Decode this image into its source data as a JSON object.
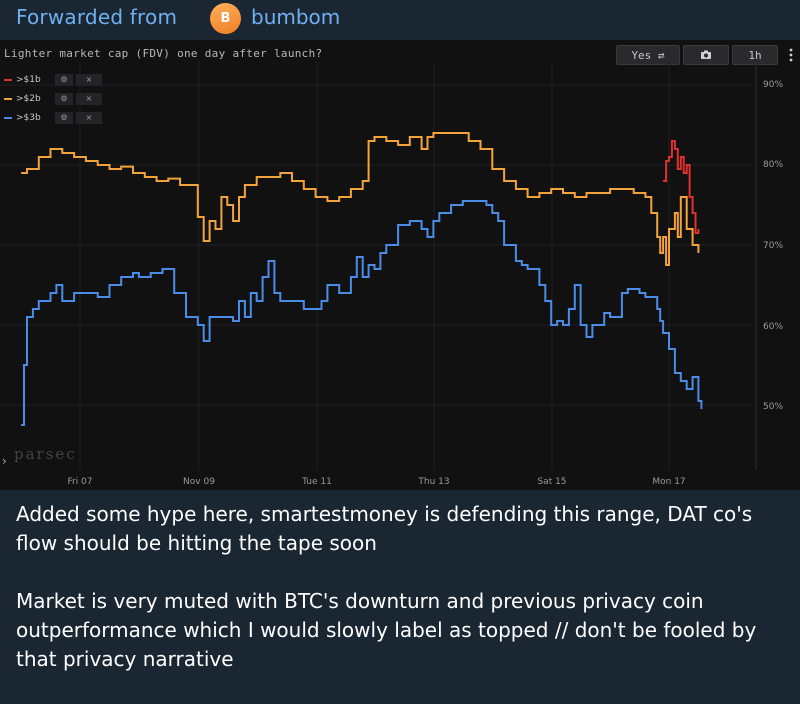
{
  "forward": {
    "label": "Forwarded from",
    "avatar_letter": "B",
    "sender": "bumbom"
  },
  "chart_header": {
    "title": "Lighter market cap (FDV) one day after launch?",
    "toggle_label": "Yes ⇄",
    "camera_icon": "camera-icon",
    "interval_label": "1h",
    "menu_icon": "more-vertical-icon"
  },
  "legend": [
    {
      "label": ">$1b",
      "color": "#e0312f"
    },
    {
      "label": ">$2b",
      "color": "#f2a33a"
    },
    {
      "label": ">$3b",
      "color": "#4a8de8"
    }
  ],
  "watermark": "parsec",
  "chart_data": {
    "type": "line",
    "title": "Lighter market cap (FDV) one day after launch?",
    "x_tick_labels": [
      "Fri 07",
      "Nov 09",
      "Tue 11",
      "Thu 13",
      "Sat 15",
      "Mon 17"
    ],
    "y_tick_labels": [
      "90%",
      "80%",
      "70%",
      "60%",
      "50%"
    ],
    "ylim": [
      45,
      92
    ],
    "y_unit": "%",
    "grid": true,
    "legend_position": "top-left",
    "series": [
      {
        "name": ">$1b",
        "color": "#e0312f",
        "points": [
          [
            16.9,
            78
          ],
          [
            16.95,
            80.5
          ],
          [
            17.0,
            81
          ],
          [
            17.05,
            83
          ],
          [
            17.1,
            82
          ],
          [
            17.15,
            79.5
          ],
          [
            17.2,
            81
          ],
          [
            17.25,
            79
          ],
          [
            17.3,
            80
          ],
          [
            17.35,
            76
          ],
          [
            17.4,
            74
          ],
          [
            17.45,
            71.5
          ],
          [
            17.5,
            72
          ]
        ]
      },
      {
        "name": ">$2b",
        "color": "#f2a33a",
        "points": [
          [
            6.0,
            79
          ],
          [
            6.1,
            79.5
          ],
          [
            6.3,
            81
          ],
          [
            6.5,
            82
          ],
          [
            6.7,
            81.5
          ],
          [
            6.9,
            81
          ],
          [
            7.1,
            80.5
          ],
          [
            7.3,
            80
          ],
          [
            7.5,
            79.5
          ],
          [
            7.7,
            79.8
          ],
          [
            7.9,
            79
          ],
          [
            8.1,
            78.5
          ],
          [
            8.3,
            78
          ],
          [
            8.5,
            78.3
          ],
          [
            8.7,
            77.5
          ],
          [
            8.9,
            77.5
          ],
          [
            9.0,
            73.5
          ],
          [
            9.1,
            70.5
          ],
          [
            9.2,
            73
          ],
          [
            9.3,
            72
          ],
          [
            9.4,
            76
          ],
          [
            9.5,
            75
          ],
          [
            9.6,
            73
          ],
          [
            9.7,
            76
          ],
          [
            9.8,
            77.5
          ],
          [
            10.0,
            78.5
          ],
          [
            10.2,
            78.5
          ],
          [
            10.4,
            79
          ],
          [
            10.6,
            78
          ],
          [
            10.8,
            77
          ],
          [
            11.0,
            76
          ],
          [
            11.2,
            75.5
          ],
          [
            11.4,
            76
          ],
          [
            11.6,
            77
          ],
          [
            11.8,
            78
          ],
          [
            11.9,
            83
          ],
          [
            12.0,
            83.5
          ],
          [
            12.2,
            83
          ],
          [
            12.4,
            82.5
          ],
          [
            12.6,
            83.5
          ],
          [
            12.8,
            82
          ],
          [
            12.9,
            83.5
          ],
          [
            13.0,
            84
          ],
          [
            13.2,
            84
          ],
          [
            13.4,
            84
          ],
          [
            13.6,
            83
          ],
          [
            13.8,
            82
          ],
          [
            14.0,
            79.5
          ],
          [
            14.2,
            78
          ],
          [
            14.4,
            77
          ],
          [
            14.6,
            76
          ],
          [
            14.8,
            76.5
          ],
          [
            15.0,
            77
          ],
          [
            15.2,
            76.5
          ],
          [
            15.4,
            76
          ],
          [
            15.6,
            76.5
          ],
          [
            15.8,
            76.5
          ],
          [
            16.0,
            77
          ],
          [
            16.2,
            77
          ],
          [
            16.4,
            76.5
          ],
          [
            16.6,
            76
          ],
          [
            16.7,
            74
          ],
          [
            16.8,
            71
          ],
          [
            16.85,
            69
          ],
          [
            16.9,
            71
          ],
          [
            16.95,
            67.5
          ],
          [
            17.0,
            72
          ],
          [
            17.1,
            74
          ],
          [
            17.15,
            71
          ],
          [
            17.2,
            76
          ],
          [
            17.3,
            72
          ],
          [
            17.4,
            70
          ],
          [
            17.5,
            69
          ]
        ]
      },
      {
        "name": ">$3b",
        "color": "#4a8de8",
        "points": [
          [
            6.0,
            47.5
          ],
          [
            6.05,
            55
          ],
          [
            6.1,
            61
          ],
          [
            6.2,
            62
          ],
          [
            6.3,
            63
          ],
          [
            6.5,
            64
          ],
          [
            6.6,
            65
          ],
          [
            6.7,
            63
          ],
          [
            6.9,
            64
          ],
          [
            7.1,
            64
          ],
          [
            7.3,
            63.5
          ],
          [
            7.5,
            65
          ],
          [
            7.7,
            66
          ],
          [
            7.9,
            66.5
          ],
          [
            8.0,
            66
          ],
          [
            8.2,
            66.5
          ],
          [
            8.4,
            67
          ],
          [
            8.6,
            64
          ],
          [
            8.8,
            61
          ],
          [
            9.0,
            60
          ],
          [
            9.1,
            58
          ],
          [
            9.2,
            61
          ],
          [
            9.4,
            61
          ],
          [
            9.6,
            60.5
          ],
          [
            9.7,
            63
          ],
          [
            9.8,
            61
          ],
          [
            9.9,
            64
          ],
          [
            10.0,
            63
          ],
          [
            10.1,
            66
          ],
          [
            10.2,
            68
          ],
          [
            10.3,
            64
          ],
          [
            10.4,
            63
          ],
          [
            10.6,
            63
          ],
          [
            10.8,
            62
          ],
          [
            11.0,
            62
          ],
          [
            11.1,
            63
          ],
          [
            11.2,
            65
          ],
          [
            11.4,
            64
          ],
          [
            11.6,
            66
          ],
          [
            11.7,
            68.5
          ],
          [
            11.8,
            66
          ],
          [
            11.9,
            67.5
          ],
          [
            12.0,
            67
          ],
          [
            12.1,
            69
          ],
          [
            12.2,
            70
          ],
          [
            12.4,
            72.5
          ],
          [
            12.6,
            73
          ],
          [
            12.8,
            72
          ],
          [
            12.9,
            71
          ],
          [
            13.0,
            73
          ],
          [
            13.1,
            74
          ],
          [
            13.3,
            75
          ],
          [
            13.5,
            75.5
          ],
          [
            13.7,
            75.5
          ],
          [
            13.9,
            75
          ],
          [
            14.0,
            74
          ],
          [
            14.1,
            73
          ],
          [
            14.2,
            70
          ],
          [
            14.4,
            68
          ],
          [
            14.5,
            67.5
          ],
          [
            14.6,
            67
          ],
          [
            14.8,
            65
          ],
          [
            14.9,
            63
          ],
          [
            15.0,
            60
          ],
          [
            15.1,
            60.5
          ],
          [
            15.2,
            60
          ],
          [
            15.3,
            62
          ],
          [
            15.4,
            65
          ],
          [
            15.5,
            60
          ],
          [
            15.6,
            58.5
          ],
          [
            15.7,
            60
          ],
          [
            15.9,
            61.5
          ],
          [
            16.0,
            61
          ],
          [
            16.1,
            61
          ],
          [
            16.2,
            64
          ],
          [
            16.3,
            64.5
          ],
          [
            16.5,
            64
          ],
          [
            16.6,
            63.5
          ],
          [
            16.8,
            62
          ],
          [
            16.85,
            60.5
          ],
          [
            16.9,
            59
          ],
          [
            17.0,
            57
          ],
          [
            17.1,
            54
          ],
          [
            17.2,
            53
          ],
          [
            17.3,
            52
          ],
          [
            17.4,
            53.5
          ],
          [
            17.5,
            50.5
          ],
          [
            17.55,
            49.5
          ]
        ]
      }
    ]
  },
  "caption": {
    "paragraph1": "Added some hype here, smartestmoney is defending this range, DAT co's flow should be hitting the tape soon",
    "paragraph2": "Market is very muted with BTC's downturn and previous privacy coin outperformance which I would slowly label as topped // don't be fooled by that privacy narrative"
  }
}
